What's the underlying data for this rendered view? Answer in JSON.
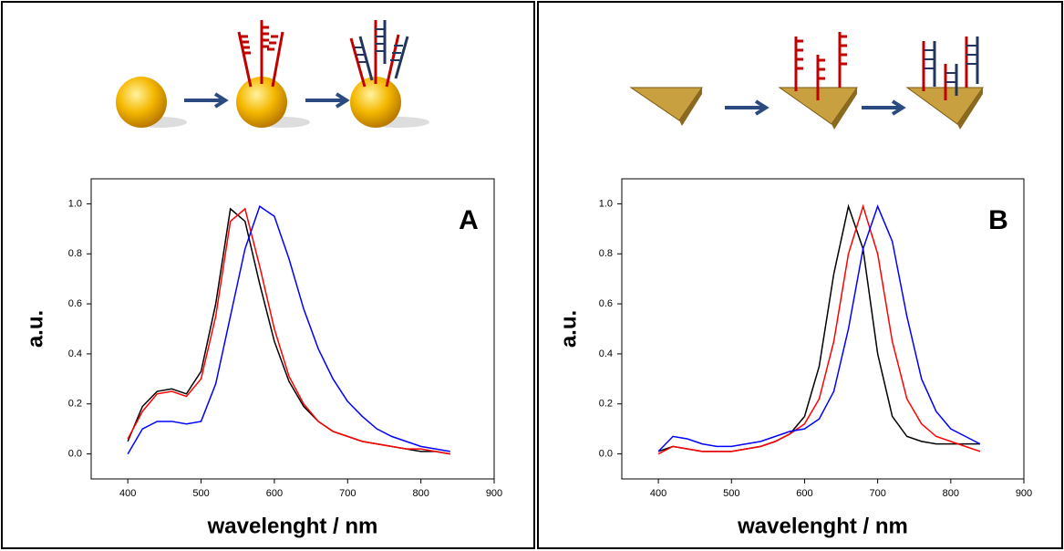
{
  "chart_data": [
    {
      "type": "line",
      "annotation": "A",
      "xlabel": "wavelenght / nm",
      "ylabel": "a.u.",
      "x": [
        400,
        420,
        440,
        460,
        480,
        500,
        520,
        540,
        560,
        580,
        600,
        620,
        640,
        660,
        680,
        700,
        720,
        740,
        760,
        780,
        800,
        820,
        840
      ],
      "series": [
        {
          "color": "#000000",
          "values": [
            0.05,
            0.19,
            0.25,
            0.26,
            0.24,
            0.33,
            0.6,
            0.98,
            0.93,
            0.68,
            0.45,
            0.29,
            0.19,
            0.13,
            0.09,
            0.07,
            0.05,
            0.04,
            0.03,
            0.02,
            0.01,
            0.01,
            0.0
          ]
        },
        {
          "color": "#ff0000",
          "values": [
            0.06,
            0.17,
            0.24,
            0.25,
            0.23,
            0.3,
            0.55,
            0.93,
            0.98,
            0.75,
            0.5,
            0.31,
            0.2,
            0.13,
            0.09,
            0.07,
            0.05,
            0.04,
            0.03,
            0.02,
            0.02,
            0.01,
            0.0
          ]
        },
        {
          "color": "#0000ff",
          "values": [
            0.0,
            0.1,
            0.13,
            0.13,
            0.12,
            0.13,
            0.28,
            0.55,
            0.82,
            0.99,
            0.95,
            0.78,
            0.58,
            0.42,
            0.3,
            0.21,
            0.15,
            0.1,
            0.07,
            0.05,
            0.03,
            0.02,
            0.01
          ]
        }
      ],
      "xlim": [
        350,
        900
      ],
      "xticks": [
        400,
        500,
        600,
        700,
        800,
        900
      ],
      "ylim": [
        -0.1,
        1.1
      ],
      "yticks": [
        {
          "value": 0,
          "label": "0.0"
        },
        0.2,
        0.4,
        0.6,
        0.8,
        {
          "value": 1,
          "label": "1.0"
        }
      ]
    },
    {
      "type": "line",
      "annotation": "B",
      "xlabel": "wavelenght / nm",
      "ylabel": "a.u.",
      "x": [
        400,
        420,
        440,
        460,
        480,
        500,
        520,
        540,
        560,
        580,
        600,
        620,
        640,
        660,
        680,
        700,
        720,
        740,
        760,
        780,
        800,
        820,
        840
      ],
      "series": [
        {
          "color": "#000000",
          "values": [
            0.01,
            0.03,
            0.02,
            0.01,
            0.01,
            0.01,
            0.02,
            0.03,
            0.05,
            0.08,
            0.15,
            0.35,
            0.72,
            0.99,
            0.82,
            0.4,
            0.15,
            0.07,
            0.05,
            0.04,
            0.04,
            0.04,
            0.04
          ]
        },
        {
          "color": "#ff0000",
          "values": [
            0.0,
            0.03,
            0.02,
            0.01,
            0.01,
            0.01,
            0.02,
            0.03,
            0.05,
            0.08,
            0.12,
            0.22,
            0.45,
            0.8,
            0.99,
            0.8,
            0.45,
            0.22,
            0.12,
            0.07,
            0.05,
            0.03,
            0.01
          ]
        },
        {
          "color": "#0000ff",
          "values": [
            0.01,
            0.07,
            0.06,
            0.04,
            0.03,
            0.03,
            0.04,
            0.05,
            0.07,
            0.09,
            0.1,
            0.14,
            0.25,
            0.5,
            0.82,
            0.99,
            0.85,
            0.55,
            0.3,
            0.17,
            0.1,
            0.07,
            0.04
          ]
        }
      ],
      "xlim": [
        350,
        900
      ],
      "xticks": [
        400,
        500,
        600,
        700,
        800,
        900
      ],
      "ylim": [
        -0.1,
        1.1
      ],
      "yticks": [
        {
          "value": 0,
          "label": "0.0"
        },
        0.2,
        0.4,
        0.6,
        0.8,
        {
          "value": 1,
          "label": "1.0"
        }
      ]
    }
  ]
}
